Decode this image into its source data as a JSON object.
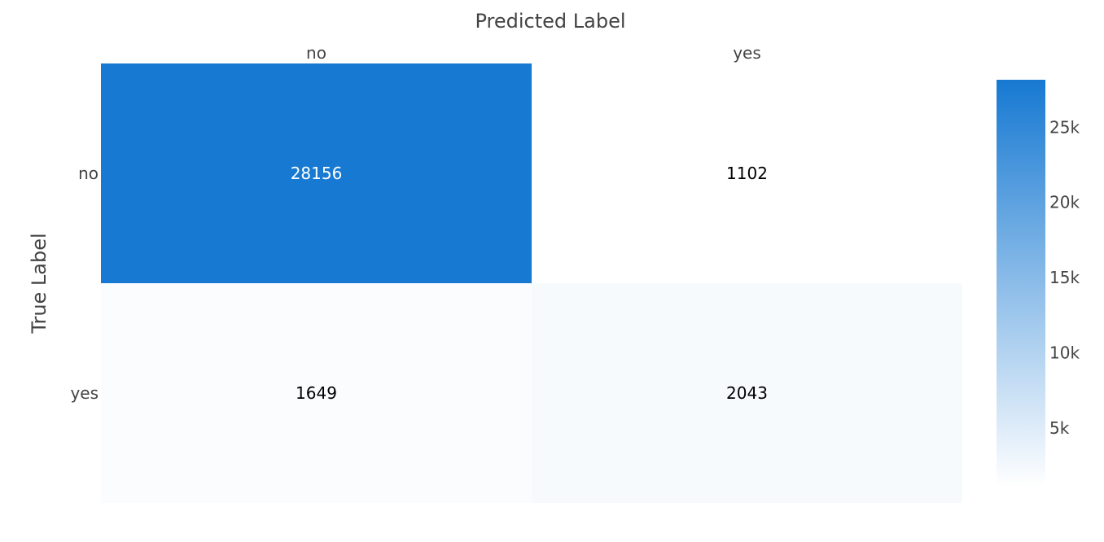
{
  "chart_data": {
    "type": "heatmap",
    "title": "",
    "xlabel": "Predicted Label",
    "ylabel": "True Label",
    "x_categories": [
      "no",
      "yes"
    ],
    "y_categories": [
      "no",
      "yes"
    ],
    "z": [
      [
        28156,
        1102
      ],
      [
        1649,
        2043
      ]
    ],
    "colorscale": [
      "#ffffff",
      "#1779d2"
    ],
    "colorbar": {
      "tick_values": [
        5000,
        10000,
        15000,
        20000,
        25000
      ],
      "tick_labels": [
        "5k",
        "10k",
        "15k",
        "20k",
        "25k"
      ]
    },
    "colors": {
      "low": "#ffffff",
      "high": "#1779d2",
      "axis_text": "#444444",
      "cell_text_dark": "#000000",
      "cell_text_light": "#ffffff"
    }
  }
}
